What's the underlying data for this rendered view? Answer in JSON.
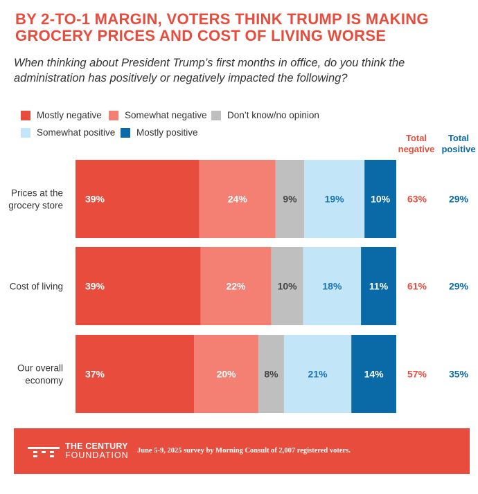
{
  "title_lines": [
    "BY 2-TO-1 MARGIN, VOTERS THINK TRUMP IS MAKING",
    "GROCERY PRICES AND COST OF LIVING WORSE"
  ],
  "subtitle_lines": [
    "When thinking about President Trump’s first months in office, do you think the",
    "administration has positively or negatively impacted the following?"
  ],
  "legend": [
    {
      "label": "Mostly negative",
      "color": "#e84c3d"
    },
    {
      "label": "Somewhat negative",
      "color": "#f47f73"
    },
    {
      "label": "Don’t know/no opinion",
      "color": "#bfbfbf"
    },
    {
      "label": "Somewhat positive",
      "color": "#c2e5f8"
    },
    {
      "label": "Mostly positive",
      "color": "#0a6aa8"
    }
  ],
  "total_headers": {
    "negative": {
      "line1": "Total",
      "line2": "negative",
      "color": "#e84c3d"
    },
    "positive": {
      "line1": "Total",
      "line2": "positive",
      "color": "#0a6aa8"
    }
  },
  "chart_data": {
    "type": "bar",
    "orientation": "horizontal-stacked-100",
    "categories": [
      [
        "Prices at the",
        "grocery store"
      ],
      [
        "Cost of living"
      ],
      [
        "Our overall",
        "economy"
      ]
    ],
    "series": [
      {
        "name": "Mostly negative",
        "values": [
          39,
          39,
          37
        ],
        "color": "#e84c3d",
        "label_color": "#ffffff"
      },
      {
        "name": "Somewhat negative",
        "values": [
          24,
          22,
          20
        ],
        "color": "#f47f73",
        "label_color": "#ffffff"
      },
      {
        "name": "Don’t know/no opinion",
        "values": [
          9,
          10,
          8
        ],
        "color": "#bfbfbf",
        "label_color": "#444444"
      },
      {
        "name": "Somewhat positive",
        "values": [
          19,
          18,
          21
        ],
        "color": "#c2e5f8",
        "label_color": "#1a75b5"
      },
      {
        "name": "Mostly positive",
        "values": [
          10,
          11,
          14
        ],
        "color": "#0a6aa8",
        "label_color": "#ffffff"
      }
    ],
    "total_negative": [
      63,
      61,
      57
    ],
    "total_positive": [
      29,
      29,
      35
    ],
    "value_suffix": "%"
  },
  "footer": {
    "org_line1": "THE CENTURY",
    "org_line2": "FOUNDATION",
    "source": "June 5-9, 2025 survey by Morning Consult of 2,007 registered voters."
  }
}
